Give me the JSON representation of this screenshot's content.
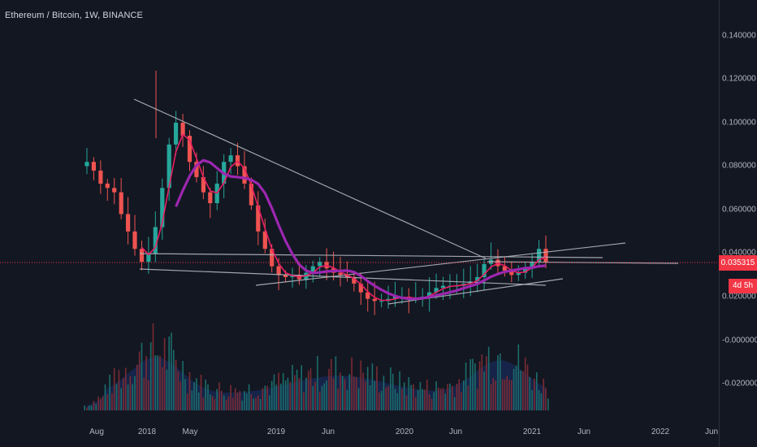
{
  "chart_data": {
    "type": "candlestick",
    "title": "Ethereum / Bitcoin, 1W, BINANCE",
    "yticks": [
      "0.140000",
      "0.120000",
      "0.100000",
      "0.080000",
      "0.060000",
      "0.040000",
      "0.020000",
      "-0.000000",
      "-0.020000"
    ],
    "ytick_values": [
      0.14,
      0.12,
      0.1,
      0.08,
      0.06,
      0.04,
      0.02,
      0.0,
      -0.02
    ],
    "xticks": [
      "Aug",
      "2018",
      "May",
      "2019",
      "Jun",
      "2020",
      "Jun",
      "2021",
      "Jun",
      "2022",
      "Jun"
    ],
    "xtick_dates": [
      "2017-08",
      "2018-01",
      "2018-05",
      "2019-01",
      "2019-06",
      "2020-01",
      "2020-06",
      "2021-01",
      "2021-06",
      "2022-01",
      "2022-06"
    ],
    "current_price": "0.035315",
    "current_price_value": 0.035315,
    "countdown": "4d 5h",
    "price_series_approx": [
      0.082,
      0.078,
      0.072,
      0.07,
      0.068,
      0.058,
      0.05,
      0.042,
      0.036,
      0.04,
      0.052,
      0.07,
      0.09,
      0.1,
      0.094,
      0.082,
      0.075,
      0.068,
      0.063,
      0.072,
      0.082,
      0.085,
      0.08,
      0.072,
      0.062,
      0.05,
      0.042,
      0.034,
      0.03,
      0.029,
      0.03,
      0.028,
      0.031,
      0.034,
      0.036,
      0.033,
      0.031,
      0.03,
      0.029,
      0.026,
      0.022,
      0.019,
      0.018,
      0.018,
      0.019,
      0.02,
      0.02,
      0.019,
      0.019,
      0.02,
      0.022,
      0.024,
      0.025,
      0.025,
      0.025,
      0.026,
      0.027,
      0.029,
      0.035,
      0.037,
      0.034,
      0.032,
      0.03,
      0.031,
      0.033,
      0.036,
      0.042,
      0.036
    ],
    "colors": {
      "up": "#26a69a",
      "down": "#ef5350",
      "ma_fast": "#e91e63",
      "ma_slow": "#9c27b0",
      "trend": "#b2b5be",
      "background": "#131722",
      "volume_ma": "#2962ff"
    }
  }
}
